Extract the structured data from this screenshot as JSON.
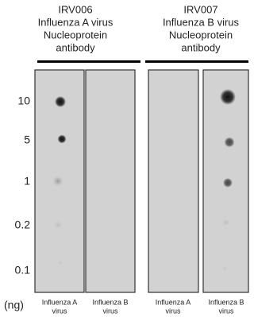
{
  "headers": [
    {
      "lines": [
        "IRV006",
        "Influenza A virus",
        "Nucleoprotein",
        "antibody"
      ]
    },
    {
      "lines": [
        "IRV007",
        "Influenza B virus",
        "Nucleoprotein",
        "antibody"
      ]
    }
  ],
  "row_labels": [
    "10",
    "5",
    "1",
    "0.2",
    "0.1"
  ],
  "unit": "(ng)",
  "panel_labels": [
    [
      "Influenza A",
      "virus"
    ],
    [
      "Influenza B",
      "virus"
    ],
    [
      "Influenza A",
      "virus"
    ],
    [
      "Influenza B",
      "virus"
    ]
  ]
}
